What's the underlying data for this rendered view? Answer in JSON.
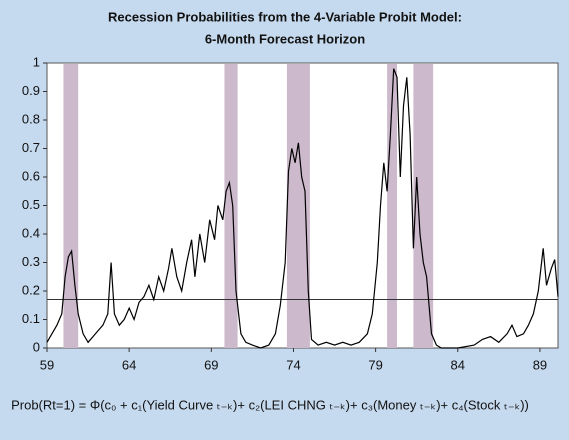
{
  "chart_data": {
    "type": "line",
    "title": "Recession Probabilities from the 4-Variable Probit Model:",
    "subtitle": "6-Month Forecast Horizon",
    "formula": "Prob(Rt=1) = Φ(c₀ + c₁(Yield Curve ₜ₋ₖ)+ c₂(LEI CHNG ₜ₋ₖ)+ c₃(Money ₜ₋ₖ)+ c₄(Stock ₜ₋ₖ))",
    "xlim": [
      59,
      90.1
    ],
    "ylim": [
      0,
      1
    ],
    "xticks": [
      59,
      64,
      69,
      74,
      79,
      84,
      89
    ],
    "yticks": [
      0,
      0.1,
      0.2,
      0.3,
      0.4,
      0.5,
      0.6,
      0.7,
      0.8,
      0.9,
      1
    ],
    "recession_shading": [
      [
        60.0,
        60.9
      ],
      [
        69.8,
        70.6
      ],
      [
        73.6,
        75.0
      ],
      [
        79.7,
        80.3
      ],
      [
        81.3,
        82.5
      ]
    ],
    "shading_color": "#cdb9cc",
    "threshold": 0.17,
    "color": "#000000",
    "x": [
      59.0,
      59.3,
      59.6,
      59.9,
      60.1,
      60.3,
      60.5,
      60.7,
      60.9,
      61.2,
      61.5,
      61.8,
      62.1,
      62.4,
      62.7,
      62.9,
      63.1,
      63.4,
      63.7,
      64.0,
      64.3,
      64.6,
      64.9,
      65.2,
      65.5,
      65.8,
      66.1,
      66.4,
      66.6,
      66.9,
      67.2,
      67.5,
      67.8,
      68.0,
      68.3,
      68.6,
      68.9,
      69.2,
      69.4,
      69.7,
      69.9,
      70.1,
      70.3,
      70.5,
      70.8,
      71.1,
      71.5,
      72.0,
      72.5,
      72.9,
      73.2,
      73.5,
      73.7,
      73.9,
      74.1,
      74.3,
      74.5,
      74.7,
      74.9,
      75.1,
      75.5,
      76.0,
      76.5,
      77.0,
      77.5,
      78.0,
      78.5,
      78.8,
      79.1,
      79.3,
      79.5,
      79.7,
      79.9,
      80.1,
      80.3,
      80.5,
      80.7,
      80.9,
      81.1,
      81.3,
      81.5,
      81.7,
      81.9,
      82.1,
      82.4,
      82.7,
      83.0,
      84.0,
      85.0,
      85.5,
      86.0,
      86.5,
      87.0,
      87.3,
      87.6,
      88.0,
      88.3,
      88.6,
      88.9,
      89.2,
      89.4,
      89.7,
      89.9,
      90.1
    ],
    "values": [
      0.02,
      0.05,
      0.08,
      0.12,
      0.25,
      0.32,
      0.34,
      0.22,
      0.12,
      0.05,
      0.02,
      0.04,
      0.06,
      0.08,
      0.12,
      0.3,
      0.12,
      0.08,
      0.1,
      0.14,
      0.1,
      0.16,
      0.18,
      0.22,
      0.17,
      0.25,
      0.2,
      0.28,
      0.35,
      0.25,
      0.2,
      0.3,
      0.38,
      0.25,
      0.4,
      0.3,
      0.45,
      0.38,
      0.5,
      0.45,
      0.55,
      0.58,
      0.5,
      0.2,
      0.05,
      0.02,
      0.01,
      0.0,
      0.01,
      0.05,
      0.15,
      0.3,
      0.62,
      0.7,
      0.65,
      0.72,
      0.6,
      0.55,
      0.2,
      0.03,
      0.01,
      0.02,
      0.01,
      0.02,
      0.01,
      0.02,
      0.05,
      0.12,
      0.3,
      0.5,
      0.65,
      0.55,
      0.75,
      0.98,
      0.95,
      0.6,
      0.85,
      0.95,
      0.75,
      0.35,
      0.6,
      0.4,
      0.3,
      0.25,
      0.05,
      0.01,
      0.0,
      0.0,
      0.01,
      0.03,
      0.04,
      0.02,
      0.05,
      0.08,
      0.04,
      0.05,
      0.08,
      0.12,
      0.2,
      0.35,
      0.22,
      0.28,
      0.31,
      0.18
    ]
  }
}
